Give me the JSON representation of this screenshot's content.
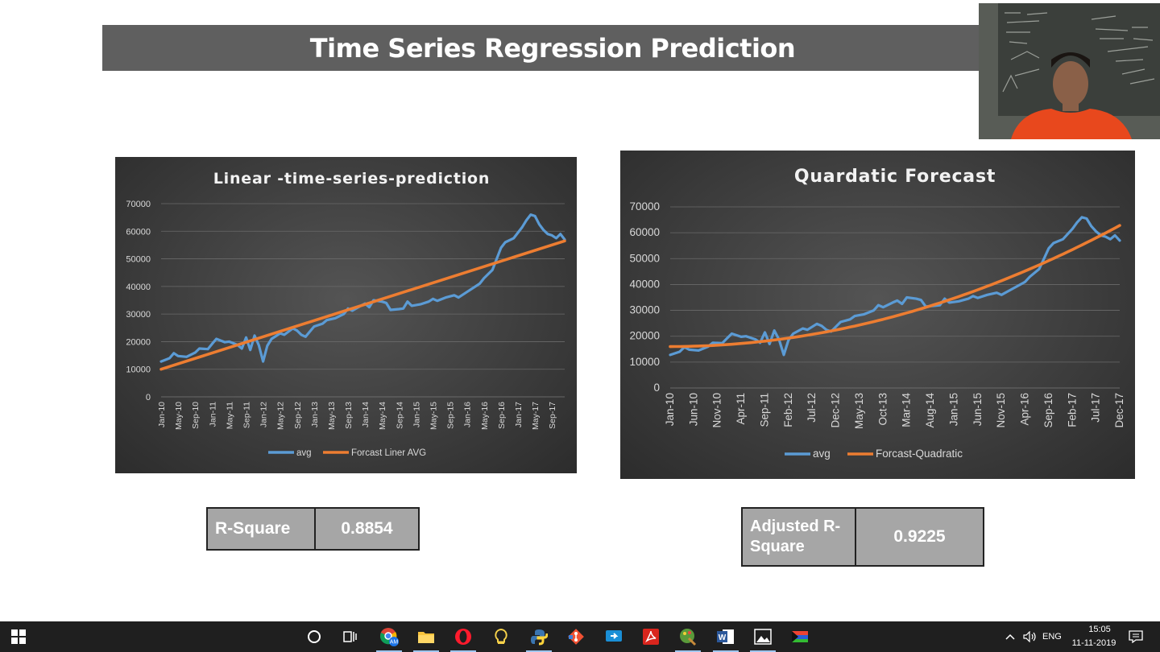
{
  "slide": {
    "title": "Time Series Regression Prediction"
  },
  "chart_data": [
    {
      "type": "line",
      "title": "Linear -time-series-prediction",
      "xlabel": "",
      "ylabel": "",
      "ylim": [
        0,
        70000
      ],
      "y_ticks": [
        0,
        10000,
        20000,
        30000,
        40000,
        50000,
        60000,
        70000
      ],
      "x_tick_labels": [
        "Jan-10",
        "May-10",
        "Sep-10",
        "Jan-11",
        "May-11",
        "Sep-11",
        "Jan-12",
        "May-12",
        "Sep-12",
        "Jan-13",
        "May-13",
        "Sep-13",
        "Jan-14",
        "May-14",
        "Sep-14",
        "Jan-15",
        "May-15",
        "Sep-15",
        "Jan-16",
        "May-16",
        "Sep-16",
        "Jan-17",
        "May-17",
        "Sep-17"
      ],
      "grid": true,
      "legend_position": "bottom",
      "series": [
        {
          "name": "avg",
          "color": "#5b9bd5",
          "points": [
            [
              "Jan-10",
              12800
            ],
            [
              "Mar-10",
              14000
            ],
            [
              "Apr-10",
              15800
            ],
            [
              "May-10",
              14800
            ],
            [
              "Jul-10",
              14500
            ],
            [
              "Sep-10",
              16000
            ],
            [
              "Oct-10",
              17500
            ],
            [
              "Dec-10",
              17300
            ],
            [
              "Jan-11",
              19200
            ],
            [
              "Feb-11",
              21000
            ],
            [
              "Apr-11",
              19800
            ],
            [
              "May-11",
              20000
            ],
            [
              "Jul-11",
              18800
            ],
            [
              "Aug-11",
              17500
            ],
            [
              "Sep-11",
              21500
            ],
            [
              "Oct-11",
              17000
            ],
            [
              "Nov-11",
              22200
            ],
            [
              "Dec-11",
              18700
            ],
            [
              "Jan-12",
              12800
            ],
            [
              "Feb-12",
              18500
            ],
            [
              "Mar-12",
              21000
            ],
            [
              "May-12",
              23000
            ],
            [
              "Jun-12",
              22500
            ],
            [
              "Aug-12",
              24800
            ],
            [
              "Sep-12",
              24000
            ],
            [
              "Oct-12",
              22500
            ],
            [
              "Nov-12",
              21800
            ],
            [
              "Jan-13",
              25500
            ],
            [
              "Mar-13",
              26500
            ],
            [
              "Apr-13",
              27800
            ],
            [
              "Jun-13",
              28500
            ],
            [
              "Aug-13",
              30000
            ],
            [
              "Sep-13",
              32000
            ],
            [
              "Oct-13",
              31200
            ],
            [
              "Dec-13",
              33000
            ],
            [
              "Jan-14",
              33800
            ],
            [
              "Feb-14",
              32500
            ],
            [
              "Mar-14",
              35000
            ],
            [
              "May-14",
              34500
            ],
            [
              "Jun-14",
              34000
            ],
            [
              "Jul-14",
              31500
            ],
            [
              "Sep-14",
              31800
            ],
            [
              "Oct-14",
              32000
            ],
            [
              "Nov-14",
              34500
            ],
            [
              "Dec-14",
              33000
            ],
            [
              "Feb-15",
              33500
            ],
            [
              "Apr-15",
              34500
            ],
            [
              "May-15",
              35500
            ],
            [
              "Jun-15",
              34800
            ],
            [
              "Aug-15",
              36000
            ],
            [
              "Oct-15",
              36800
            ],
            [
              "Nov-15",
              36000
            ],
            [
              "Jan-16",
              38000
            ],
            [
              "Apr-16",
              41000
            ],
            [
              "May-16",
              43000
            ],
            [
              "Jul-16",
              46000
            ],
            [
              "Aug-16",
              50000
            ],
            [
              "Sep-16",
              54000
            ],
            [
              "Oct-16",
              56000
            ],
            [
              "Dec-16",
              57500
            ],
            [
              "Feb-17",
              61500
            ],
            [
              "Mar-17",
              64000
            ],
            [
              "Apr-17",
              66000
            ],
            [
              "May-17",
              65500
            ],
            [
              "Jun-17",
              62500
            ],
            [
              "Jul-17",
              60500
            ],
            [
              "Aug-17",
              59000
            ],
            [
              "Sep-17",
              58500
            ],
            [
              "Oct-17",
              57500
            ],
            [
              "Nov-17",
              59000
            ],
            [
              "Dec-17",
              57000
            ]
          ]
        },
        {
          "name": "Forcast Liner AVG",
          "color": "#ed7d31",
          "points": [
            [
              "Jan-10",
              10000
            ],
            [
              "Dec-17",
              56500
            ]
          ]
        }
      ]
    },
    {
      "type": "line",
      "title": "Quardatic  Forecast",
      "xlabel": "",
      "ylabel": "",
      "ylim": [
        0,
        70000
      ],
      "y_ticks": [
        0,
        10000,
        20000,
        30000,
        40000,
        50000,
        60000,
        70000
      ],
      "x_tick_labels": [
        "Jan-10",
        "Jun-10",
        "Nov-10",
        "Apr-11",
        "Sep-11",
        "Feb-12",
        "Jul-12",
        "Dec-12",
        "May-13",
        "Oct-13",
        "Mar-14",
        "Aug-14",
        "Jan-15",
        "Jun-15",
        "Nov-15",
        "Apr-16",
        "Sep-16",
        "Feb-17",
        "Jul-17",
        "Dec-17"
      ],
      "grid": true,
      "legend_position": "bottom",
      "series": [
        {
          "name": "avg",
          "color": "#5b9bd5",
          "points": [
            [
              "Jan-10",
              12800
            ],
            [
              "Mar-10",
              14000
            ],
            [
              "Apr-10",
              15800
            ],
            [
              "May-10",
              14800
            ],
            [
              "Jul-10",
              14500
            ],
            [
              "Sep-10",
              16000
            ],
            [
              "Oct-10",
              17500
            ],
            [
              "Dec-10",
              17300
            ],
            [
              "Jan-11",
              19200
            ],
            [
              "Feb-11",
              21000
            ],
            [
              "Apr-11",
              19800
            ],
            [
              "May-11",
              20000
            ],
            [
              "Jul-11",
              18800
            ],
            [
              "Aug-11",
              17500
            ],
            [
              "Sep-11",
              21500
            ],
            [
              "Oct-11",
              17000
            ],
            [
              "Nov-11",
              22200
            ],
            [
              "Dec-11",
              18700
            ],
            [
              "Jan-12",
              12800
            ],
            [
              "Feb-12",
              18500
            ],
            [
              "Mar-12",
              21000
            ],
            [
              "May-12",
              23000
            ],
            [
              "Jun-12",
              22500
            ],
            [
              "Aug-12",
              24800
            ],
            [
              "Sep-12",
              24000
            ],
            [
              "Oct-12",
              22500
            ],
            [
              "Nov-12",
              21800
            ],
            [
              "Jan-13",
              25500
            ],
            [
              "Mar-13",
              26500
            ],
            [
              "Apr-13",
              27800
            ],
            [
              "Jun-13",
              28500
            ],
            [
              "Aug-13",
              30000
            ],
            [
              "Sep-13",
              32000
            ],
            [
              "Oct-13",
              31200
            ],
            [
              "Dec-13",
              33000
            ],
            [
              "Jan-14",
              33800
            ],
            [
              "Feb-14",
              32500
            ],
            [
              "Mar-14",
              35000
            ],
            [
              "May-14",
              34500
            ],
            [
              "Jun-14",
              34000
            ],
            [
              "Jul-14",
              31500
            ],
            [
              "Sep-14",
              31800
            ],
            [
              "Oct-14",
              32000
            ],
            [
              "Nov-14",
              34500
            ],
            [
              "Dec-14",
              33000
            ],
            [
              "Feb-15",
              33500
            ],
            [
              "Apr-15",
              34500
            ],
            [
              "May-15",
              35500
            ],
            [
              "Jun-15",
              34800
            ],
            [
              "Aug-15",
              36000
            ],
            [
              "Oct-15",
              36800
            ],
            [
              "Nov-15",
              36000
            ],
            [
              "Jan-16",
              38000
            ],
            [
              "Apr-16",
              41000
            ],
            [
              "May-16",
              43000
            ],
            [
              "Jul-16",
              46000
            ],
            [
              "Aug-16",
              50000
            ],
            [
              "Sep-16",
              54000
            ],
            [
              "Oct-16",
              56000
            ],
            [
              "Dec-16",
              57500
            ],
            [
              "Feb-17",
              61500
            ],
            [
              "Mar-17",
              64000
            ],
            [
              "Apr-17",
              66000
            ],
            [
              "May-17",
              65500
            ],
            [
              "Jun-17",
              62500
            ],
            [
              "Jul-17",
              60500
            ],
            [
              "Aug-17",
              59000
            ],
            [
              "Sep-17",
              58500
            ],
            [
              "Oct-17",
              57500
            ],
            [
              "Nov-17",
              59000
            ],
            [
              "Dec-17",
              57000
            ]
          ]
        },
        {
          "name": "Forcast-Quadratic",
          "color": "#ed7d31",
          "points": [
            [
              "Jan-10",
              16000
            ],
            [
              "Jan-11",
              17800
            ],
            [
              "Jan-12",
              20300
            ],
            [
              "Jan-13",
              23600
            ],
            [
              "Jan-14",
              28000
            ],
            [
              "Jan-15",
              33400
            ],
            [
              "Jan-16",
              39800
            ],
            [
              "Jan-17",
              47500
            ],
            [
              "Jan-18",
              56500
            ],
            [
              "Dec-17",
              62800
            ]
          ]
        }
      ]
    }
  ],
  "metrics": {
    "r_square": {
      "label": "R-Square",
      "value": "0.8854"
    },
    "adjusted_r_square": {
      "label_line1": "Adjusted R-",
      "label_line2": "Square",
      "value": "0.9225"
    }
  },
  "taskbar": {
    "icons": [
      "windows-start-icon",
      "cortana-icon",
      "task-view-icon",
      "chrome-icon",
      "file-explorer-icon",
      "opera-icon",
      "sticky-notes-icon",
      "python-icon",
      "git-icon",
      "remote-desktop-icon",
      "acrobat-icon",
      "paint-icon",
      "word-icon",
      "photos-icon",
      "flag-app-icon"
    ],
    "language": "ENG",
    "time": "15:05",
    "date": "11-11-2019",
    "chrome_badge": "AM"
  }
}
